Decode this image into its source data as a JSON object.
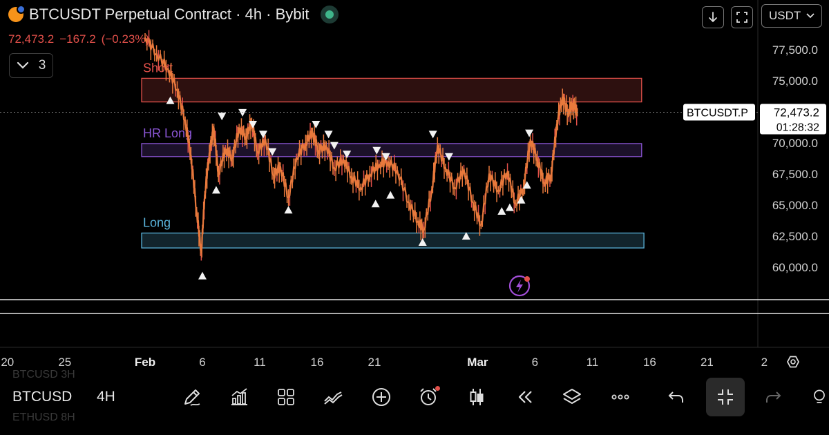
{
  "header": {
    "title": "BTCUSDT Perpetual Contract · 4h · Bybit",
    "last_price": "72,473.2",
    "change": "−167.2",
    "change_pct": "(−0.23%)",
    "collapse_count": "3",
    "currency": "USDT"
  },
  "colors": {
    "background": "#000000",
    "candle_color": "#e8793c",
    "short_zone": "#e2504a",
    "hr_long_zone": "#8a55d4",
    "long_zone": "#5ab4dc",
    "down_color": "#e2504a"
  },
  "bottom": {
    "symbol": "BTCUSD",
    "timeframe": "4H",
    "ghost_top": "BTCUSD  3H",
    "ghost_bottom": "ETHUSD  8H"
  },
  "chart_data": {
    "type": "line",
    "title": "BTCUSDT Perpetual Contract · 4h · Bybit",
    "ylim": [
      57500,
      80000
    ],
    "y_ticks": [
      60000,
      62500,
      65000,
      67500,
      70000,
      72500,
      75000,
      77500
    ],
    "y_tick_labels": [
      "60,000.0",
      "62,500.0",
      "65,000.0",
      "67,500.0",
      "70,000.0",
      "",
      "75,000.0",
      "77,500.0"
    ],
    "x_ticks": [
      {
        "day": -12,
        "label": "20"
      },
      {
        "day": -7,
        "label": "25"
      },
      {
        "day": 0,
        "label": "Feb"
      },
      {
        "day": 5,
        "label": "6"
      },
      {
        "day": 10,
        "label": "11"
      },
      {
        "day": 15,
        "label": "16"
      },
      {
        "day": 20,
        "label": "21"
      },
      {
        "day": 29,
        "label": "Mar"
      },
      {
        "day": 34,
        "label": "6"
      },
      {
        "day": 39,
        "label": "11"
      },
      {
        "day": 44,
        "label": "16"
      },
      {
        "day": 49,
        "label": "21"
      },
      {
        "day": 54,
        "label": "2"
      }
    ],
    "price_series": [
      {
        "day": 0.0,
        "price": 78500
      },
      {
        "day": 1.0,
        "price": 77200
      },
      {
        "day": 2.0,
        "price": 76000
      },
      {
        "day": 2.8,
        "price": 74300
      },
      {
        "day": 3.5,
        "price": 71800
      },
      {
        "day": 4.0,
        "price": 69000
      },
      {
        "day": 4.5,
        "price": 64500
      },
      {
        "day": 4.9,
        "price": 61200
      },
      {
        "day": 5.2,
        "price": 65800
      },
      {
        "day": 5.6,
        "price": 69200
      },
      {
        "day": 6.0,
        "price": 71200
      },
      {
        "day": 6.4,
        "price": 67500
      },
      {
        "day": 7.0,
        "price": 69500
      },
      {
        "day": 7.6,
        "price": 68800
      },
      {
        "day": 8.2,
        "price": 71200
      },
      {
        "day": 8.8,
        "price": 70500
      },
      {
        "day": 9.3,
        "price": 71700
      },
      {
        "day": 9.8,
        "price": 69300
      },
      {
        "day": 10.5,
        "price": 70300
      },
      {
        "day": 11.2,
        "price": 67400
      },
      {
        "day": 11.8,
        "price": 68100
      },
      {
        "day": 12.5,
        "price": 65600
      },
      {
        "day": 13.2,
        "price": 68800
      },
      {
        "day": 14.0,
        "price": 70000
      },
      {
        "day": 14.6,
        "price": 70900
      },
      {
        "day": 15.1,
        "price": 69400
      },
      {
        "day": 15.8,
        "price": 69800
      },
      {
        "day": 16.5,
        "price": 68000
      },
      {
        "day": 17.3,
        "price": 68700
      },
      {
        "day": 18.0,
        "price": 67300
      },
      {
        "day": 18.8,
        "price": 66400
      },
      {
        "day": 19.6,
        "price": 67500
      },
      {
        "day": 20.4,
        "price": 68300
      },
      {
        "day": 21.2,
        "price": 68500
      },
      {
        "day": 22.0,
        "price": 67800
      },
      {
        "day": 23.0,
        "price": 65200
      },
      {
        "day": 23.8,
        "price": 63700
      },
      {
        "day": 24.3,
        "price": 63000
      },
      {
        "day": 25.0,
        "price": 66200
      },
      {
        "day": 25.5,
        "price": 69800
      },
      {
        "day": 26.2,
        "price": 68000
      },
      {
        "day": 27.0,
        "price": 66400
      },
      {
        "day": 27.8,
        "price": 67900
      },
      {
        "day": 28.6,
        "price": 65200
      },
      {
        "day": 29.3,
        "price": 63400
      },
      {
        "day": 30.0,
        "price": 67500
      },
      {
        "day": 30.8,
        "price": 66200
      },
      {
        "day": 31.6,
        "price": 67700
      },
      {
        "day": 32.3,
        "price": 65100
      },
      {
        "day": 33.0,
        "price": 66400
      },
      {
        "day": 33.6,
        "price": 70300
      },
      {
        "day": 34.2,
        "price": 68700
      },
      {
        "day": 34.8,
        "price": 66800
      },
      {
        "day": 35.4,
        "price": 67400
      },
      {
        "day": 35.9,
        "price": 71500
      },
      {
        "day": 36.4,
        "price": 73700
      },
      {
        "day": 36.9,
        "price": 72400
      },
      {
        "day": 37.3,
        "price": 73200
      },
      {
        "day": 37.7,
        "price": 72473
      }
    ],
    "zones": [
      {
        "name": "Short",
        "label": "Short",
        "from_day": -0.3,
        "to_day": 43.3,
        "low": 73300,
        "high": 75200,
        "color": "#e2504a"
      },
      {
        "name": "HR Long",
        "label": "HR Long",
        "from_day": -0.3,
        "to_day": 43.3,
        "low": 68900,
        "high": 69950,
        "color": "#8a55d4"
      },
      {
        "name": "Long",
        "label": "Long",
        "from_day": -0.3,
        "to_day": 43.5,
        "low": 61550,
        "high": 62750,
        "color": "#5ab4dc"
      }
    ],
    "markers": [
      {
        "day": 2.2,
        "price": 73400,
        "dir": "up"
      },
      {
        "day": 5.0,
        "price": 59300,
        "dir": "up"
      },
      {
        "day": 6.2,
        "price": 66200,
        "dir": "up"
      },
      {
        "day": 12.5,
        "price": 64600,
        "dir": "up"
      },
      {
        "day": 20.1,
        "price": 65100,
        "dir": "up"
      },
      {
        "day": 21.4,
        "price": 65800,
        "dir": "up"
      },
      {
        "day": 24.2,
        "price": 62000,
        "dir": "up"
      },
      {
        "day": 28.0,
        "price": 62500,
        "dir": "up"
      },
      {
        "day": 31.1,
        "price": 64500,
        "dir": "up"
      },
      {
        "day": 31.8,
        "price": 64800,
        "dir": "up"
      },
      {
        "day": 32.8,
        "price": 65400,
        "dir": "up"
      },
      {
        "day": 33.3,
        "price": 66600,
        "dir": "up"
      },
      {
        "day": 6.7,
        "price": 72150,
        "dir": "down"
      },
      {
        "day": 8.5,
        "price": 72450,
        "dir": "down"
      },
      {
        "day": 9.4,
        "price": 71500,
        "dir": "down"
      },
      {
        "day": 10.3,
        "price": 70700,
        "dir": "down"
      },
      {
        "day": 11.1,
        "price": 69300,
        "dir": "down"
      },
      {
        "day": 14.9,
        "price": 71500,
        "dir": "down"
      },
      {
        "day": 16.0,
        "price": 70700,
        "dir": "down"
      },
      {
        "day": 16.5,
        "price": 69800,
        "dir": "down"
      },
      {
        "day": 17.6,
        "price": 69100,
        "dir": "down"
      },
      {
        "day": 20.2,
        "price": 69400,
        "dir": "down"
      },
      {
        "day": 21.0,
        "price": 68900,
        "dir": "down"
      },
      {
        "day": 25.1,
        "price": 70700,
        "dir": "down"
      },
      {
        "day": 26.5,
        "price": 68900,
        "dir": "down"
      },
      {
        "day": 33.5,
        "price": 70800,
        "dir": "down"
      }
    ],
    "last_price": {
      "price": 72473.2,
      "symbol": "BTCUSDT.P",
      "value_label": "72,473.2",
      "countdown": "01:28:32"
    }
  }
}
